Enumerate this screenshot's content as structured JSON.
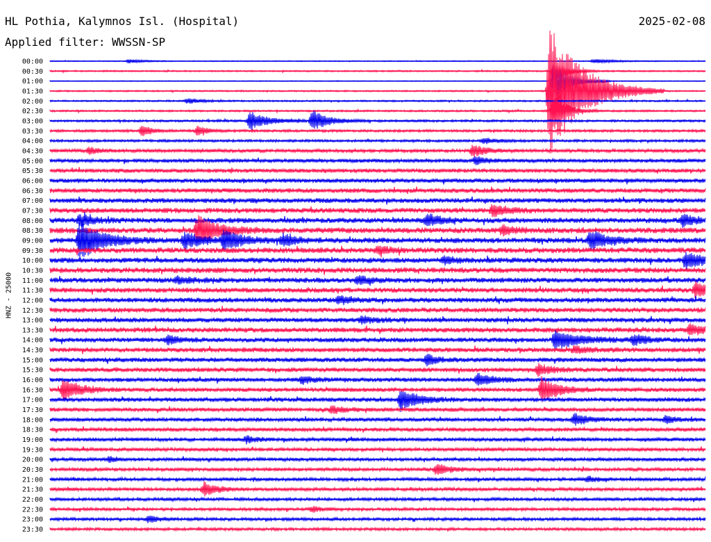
{
  "header": {
    "station": "HL Pothia, Kalymnos Isl. (Hospital)",
    "filter": "Applied filter: WWSSN-SP",
    "date": "2025-02-08",
    "channel": "HNZ - 25000"
  },
  "colors": {
    "even": "#0000ee",
    "odd": "#ff1150"
  },
  "chart_data": {
    "type": "line",
    "title": "HL Pothia, Kalymnos Isl. (Hospital)",
    "subtitle": "Applied filter: WWSSN-SP",
    "ylabel": "HNZ - 25000",
    "rows": [
      "00:00",
      "00:30",
      "01:00",
      "01:30",
      "02:00",
      "02:30",
      "03:00",
      "03:30",
      "04:00",
      "04:30",
      "05:00",
      "05:30",
      "06:00",
      "06:30",
      "07:00",
      "07:30",
      "08:00",
      "08:30",
      "09:00",
      "09:30",
      "10:00",
      "10:30",
      "11:00",
      "11:30",
      "12:00",
      "12:30",
      "13:00",
      "13:30",
      "14:00",
      "14:30",
      "15:00",
      "15:30",
      "16:00",
      "16:30",
      "17:00",
      "17:30",
      "18:00",
      "18:30",
      "19:00",
      "19:30",
      "20:00",
      "20:30",
      "21:00",
      "21:30",
      "22:00",
      "22:30",
      "23:00",
      "23:30"
    ],
    "noise": [
      0.6,
      0.9,
      0.5,
      0.9,
      1.0,
      1.1,
      1.3,
      1.5,
      1.5,
      2.0,
      2.2,
      2.4,
      2.5,
      2.7,
      2.8,
      3.0,
      3.1,
      3.3,
      3.2,
      3.3,
      3.1,
      3.2,
      3.0,
      3.0,
      2.9,
      2.9,
      2.8,
      2.9,
      2.8,
      2.8,
      2.7,
      2.7,
      2.6,
      2.5,
      2.6,
      2.4,
      2.3,
      2.3,
      2.2,
      2.1,
      2.1,
      2.0,
      2.0,
      2.0,
      1.9,
      1.8,
      1.8,
      1.7
    ],
    "events": [
      {
        "row": 0,
        "t": 0.12,
        "amp": 3,
        "dur": 0.02
      },
      {
        "row": 0,
        "t": 0.83,
        "amp": 3,
        "dur": 0.03
      },
      {
        "row": 1,
        "t": 0.768,
        "amp": 16,
        "dur": 0.02
      },
      {
        "row": 2,
        "t": 0.768,
        "amp": 30,
        "dur": 0.025
      },
      {
        "row": 3,
        "t": 0.762,
        "amp": 95,
        "dur": 0.05
      },
      {
        "row": 4,
        "t": 0.21,
        "amp": 4,
        "dur": 0.02
      },
      {
        "row": 5,
        "t": 0.768,
        "amp": 25,
        "dur": 0.02
      },
      {
        "row": 6,
        "t": 0.305,
        "amp": 14,
        "dur": 0.025
      },
      {
        "row": 6,
        "t": 0.4,
        "amp": 16,
        "dur": 0.025
      },
      {
        "row": 7,
        "t": 0.14,
        "amp": 8,
        "dur": 0.015
      },
      {
        "row": 7,
        "t": 0.225,
        "amp": 7,
        "dur": 0.015
      },
      {
        "row": 8,
        "t": 0.662,
        "amp": 4,
        "dur": 0.02
      },
      {
        "row": 9,
        "t": 0.06,
        "amp": 5,
        "dur": 0.015
      },
      {
        "row": 9,
        "t": 0.645,
        "amp": 9,
        "dur": 0.02
      },
      {
        "row": 10,
        "t": 0.65,
        "amp": 6,
        "dur": 0.015
      },
      {
        "row": 15,
        "t": 0.675,
        "amp": 9,
        "dur": 0.02
      },
      {
        "row": 16,
        "t": 0.045,
        "amp": 8,
        "dur": 0.02
      },
      {
        "row": 16,
        "t": 0.575,
        "amp": 9,
        "dur": 0.02
      },
      {
        "row": 16,
        "t": 0.965,
        "amp": 8,
        "dur": 0.02
      },
      {
        "row": 17,
        "t": 0.225,
        "amp": 22,
        "dur": 0.03
      },
      {
        "row": 17,
        "t": 0.69,
        "amp": 6,
        "dur": 0.02
      },
      {
        "row": 18,
        "t": 0.045,
        "amp": 28,
        "dur": 0.035
      },
      {
        "row": 18,
        "t": 0.205,
        "amp": 12,
        "dur": 0.025
      },
      {
        "row": 18,
        "t": 0.265,
        "amp": 15,
        "dur": 0.025
      },
      {
        "row": 18,
        "t": 0.355,
        "amp": 8,
        "dur": 0.02
      },
      {
        "row": 18,
        "t": 0.824,
        "amp": 14,
        "dur": 0.025
      },
      {
        "row": 19,
        "t": 0.5,
        "amp": 5,
        "dur": 0.02
      },
      {
        "row": 20,
        "t": 0.97,
        "amp": 12,
        "dur": 0.025
      },
      {
        "row": 20,
        "t": 0.6,
        "amp": 5,
        "dur": 0.02
      },
      {
        "row": 22,
        "t": 0.195,
        "amp": 5,
        "dur": 0.02
      },
      {
        "row": 22,
        "t": 0.47,
        "amp": 5,
        "dur": 0.02
      },
      {
        "row": 23,
        "t": 0.985,
        "amp": 11,
        "dur": 0.02
      },
      {
        "row": 24,
        "t": 0.44,
        "amp": 5,
        "dur": 0.02
      },
      {
        "row": 26,
        "t": 0.475,
        "amp": 5,
        "dur": 0.02
      },
      {
        "row": 27,
        "t": 0.975,
        "amp": 7,
        "dur": 0.02
      },
      {
        "row": 28,
        "t": 0.18,
        "amp": 7,
        "dur": 0.015
      },
      {
        "row": 28,
        "t": 0.77,
        "amp": 12,
        "dur": 0.04
      },
      {
        "row": 28,
        "t": 0.89,
        "amp": 7,
        "dur": 0.02
      },
      {
        "row": 29,
        "t": 0.8,
        "amp": 5,
        "dur": 0.02
      },
      {
        "row": 30,
        "t": 0.575,
        "amp": 8,
        "dur": 0.015
      },
      {
        "row": 31,
        "t": 0.745,
        "amp": 8,
        "dur": 0.02
      },
      {
        "row": 32,
        "t": 0.385,
        "amp": 6,
        "dur": 0.015
      },
      {
        "row": 32,
        "t": 0.652,
        "amp": 9,
        "dur": 0.02
      },
      {
        "row": 33,
        "t": 0.02,
        "amp": 16,
        "dur": 0.025
      },
      {
        "row": 33,
        "t": 0.75,
        "amp": 18,
        "dur": 0.025
      },
      {
        "row": 34,
        "t": 0.535,
        "amp": 15,
        "dur": 0.025
      },
      {
        "row": 35,
        "t": 0.43,
        "amp": 5,
        "dur": 0.02
      },
      {
        "row": 36,
        "t": 0.8,
        "amp": 9,
        "dur": 0.02
      },
      {
        "row": 36,
        "t": 0.94,
        "amp": 5,
        "dur": 0.015
      },
      {
        "row": 38,
        "t": 0.3,
        "amp": 5,
        "dur": 0.015
      },
      {
        "row": 40,
        "t": 0.09,
        "amp": 4,
        "dur": 0.015
      },
      {
        "row": 41,
        "t": 0.59,
        "amp": 8,
        "dur": 0.02
      },
      {
        "row": 42,
        "t": 0.82,
        "amp": 4,
        "dur": 0.015
      },
      {
        "row": 43,
        "t": 0.235,
        "amp": 10,
        "dur": 0.02
      },
      {
        "row": 45,
        "t": 0.4,
        "amp": 4,
        "dur": 0.015
      },
      {
        "row": 46,
        "t": 0.15,
        "amp": 5,
        "dur": 0.015
      }
    ]
  }
}
